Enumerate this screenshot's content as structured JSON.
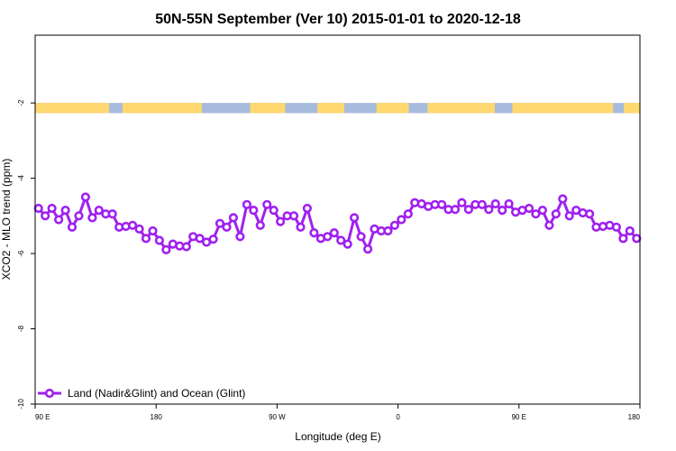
{
  "chart_data": {
    "type": "line",
    "title": "50N-55N September (Ver 10)   2015-01-01 to 2020-12-18",
    "xlabel": "Longitude (deg E)",
    "ylabel": "XCO2 - MLO trend (ppm)",
    "xlim": [
      90,
      540
    ],
    "ylim": [
      -10,
      -0.2
    ],
    "x_ticks": [
      {
        "value": 90,
        "label": "90 E"
      },
      {
        "value": 180,
        "label": "180"
      },
      {
        "value": 270,
        "label": "90 W"
      },
      {
        "value": 360,
        "label": "0"
      },
      {
        "value": 450,
        "label": "90 E"
      },
      {
        "value": 540,
        "label": "180"
      }
    ],
    "y_ticks": [
      {
        "value": -2,
        "label": "-2"
      },
      {
        "value": -4,
        "label": "-4"
      },
      {
        "value": -6,
        "label": "-6"
      },
      {
        "value": -8,
        "label": "-8"
      },
      {
        "value": -10,
        "label": "-10"
      }
    ],
    "legend": {
      "position": "bottom-left",
      "label": "Land (Nadir&Glint) and Ocean (Glint)"
    },
    "land_ocean_band": {
      "y_range": [
        -2.27,
        -2.0
      ],
      "land_color": "#FFD970",
      "ocean_color": "#A7BBDD",
      "land_segments": [
        [
          90,
          145
        ],
        [
          155,
          214
        ],
        [
          250,
          276
        ],
        [
          300,
          320
        ],
        [
          344,
          368
        ],
        [
          382,
          432
        ],
        [
          445,
          520
        ],
        [
          528,
          540
        ]
      ]
    },
    "series": [
      {
        "name": "Land (Nadir&Glint) and Ocean (Glint)",
        "color": "#A020F0",
        "x": [
          92.5,
          97.5,
          102.5,
          107.5,
          112.5,
          117.5,
          122.5,
          127.5,
          132.5,
          137.5,
          142.5,
          147.5,
          152.5,
          157.5,
          162.5,
          167.5,
          172.5,
          177.5,
          182.5,
          187.5,
          192.5,
          197.5,
          202.5,
          207.5,
          212.5,
          217.5,
          222.5,
          227.5,
          232.5,
          237.5,
          242.5,
          247.5,
          252.5,
          257.5,
          262.5,
          267.5,
          272.5,
          277.5,
          282.5,
          287.5,
          292.5,
          297.5,
          302.5,
          307.5,
          312.5,
          317.5,
          322.5,
          327.5,
          332.5,
          337.5,
          342.5,
          347.5,
          352.5,
          357.5,
          362.5,
          367.5,
          372.5,
          377.5,
          382.5,
          387.5,
          392.5,
          397.5,
          402.5,
          407.5,
          412.5,
          417.5,
          422.5,
          427.5,
          432.5,
          437.5,
          442.5,
          447.5,
          452.5,
          457.5,
          462.5,
          467.5,
          472.5,
          477.5,
          482.5,
          487.5,
          492.5,
          497.5,
          502.5,
          507.5,
          512.5,
          517.5,
          522.5,
          527.5,
          532.5,
          537.5
        ],
        "y": [
          -4.8,
          -5.0,
          -4.8,
          -5.1,
          -4.85,
          -5.3,
          -5.0,
          -4.5,
          -5.05,
          -4.85,
          -4.95,
          -4.95,
          -5.3,
          -5.28,
          -5.25,
          -5.35,
          -5.6,
          -5.4,
          -5.65,
          -5.9,
          -5.75,
          -5.8,
          -5.82,
          -5.55,
          -5.6,
          -5.7,
          -5.62,
          -5.2,
          -5.3,
          -5.05,
          -5.55,
          -4.7,
          -4.85,
          -5.25,
          -4.7,
          -4.85,
          -5.15,
          -5.0,
          -5.0,
          -5.3,
          -4.8,
          -5.45,
          -5.6,
          -5.55,
          -5.45,
          -5.65,
          -5.75,
          -5.05,
          -5.55,
          -5.88,
          -5.35,
          -5.4,
          -5.4,
          -5.25,
          -5.1,
          -4.95,
          -4.65,
          -4.68,
          -4.75,
          -4.7,
          -4.7,
          -4.83,
          -4.83,
          -4.65,
          -4.83,
          -4.7,
          -4.7,
          -4.83,
          -4.68,
          -4.85,
          -4.68,
          -4.9,
          -4.85,
          -4.8,
          -4.95,
          -4.85,
          -5.25,
          -4.95,
          -4.55,
          -5.0,
          -4.85,
          -4.92,
          -4.95,
          -5.3,
          -5.28,
          -5.25,
          -5.3,
          -5.6,
          -5.4,
          -5.6
        ]
      }
    ]
  }
}
